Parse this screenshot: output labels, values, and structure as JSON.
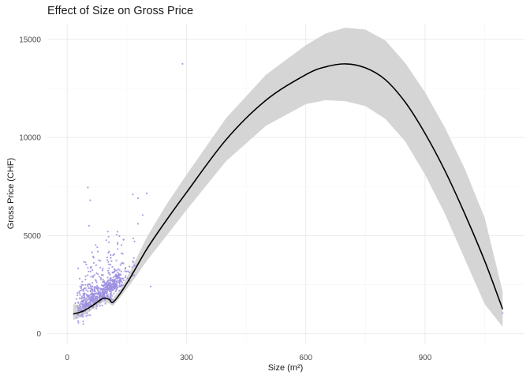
{
  "chart_data": {
    "type": "scatter",
    "title": "Effect of Size on Gross Price",
    "xlabel": "Size (m²)",
    "ylabel": "Gross Price (CHF)",
    "xlim": [
      -50,
      1150
    ],
    "ylim": [
      -500,
      15800
    ],
    "x_ticks": [
      0,
      300,
      600,
      900
    ],
    "y_ticks": [
      0,
      5000,
      10000,
      15000
    ],
    "grid": true,
    "legend": "none",
    "colors": {
      "points": "#9c8fe0",
      "smooth_line": "#000000",
      "ribbon": "#d3d3d3",
      "grid_major": "#ebebeb",
      "grid_minor": "#f5f5f5"
    },
    "points_description_count": 700,
    "outlier_points": [
      {
        "x": 290,
        "y": 13750
      },
      {
        "x": 52,
        "y": 7450
      },
      {
        "x": 165,
        "y": 7100
      },
      {
        "x": 200,
        "y": 7150
      },
      {
        "x": 178,
        "y": 6900
      },
      {
        "x": 58,
        "y": 6800
      },
      {
        "x": 190,
        "y": 6050
      },
      {
        "x": 178,
        "y": 5600
      },
      {
        "x": 55,
        "y": 5500
      },
      {
        "x": 210,
        "y": 2400
      },
      {
        "x": 1095,
        "y": 1050
      }
    ],
    "smooth": {
      "x": [
        15,
        40,
        65,
        90,
        105,
        115,
        135,
        160,
        200,
        250,
        300,
        400,
        500,
        600,
        650,
        700,
        750,
        800,
        850,
        900,
        950,
        1000,
        1050,
        1095
      ],
      "y": [
        1000,
        1150,
        1450,
        1800,
        1750,
        1600,
        2100,
        2900,
        4300,
        5800,
        7200,
        9900,
        11900,
        13200,
        13600,
        13750,
        13550,
        12950,
        11800,
        10200,
        8300,
        6100,
        3700,
        1250
      ],
      "lower": [
        700,
        900,
        1250,
        1600,
        1550,
        1400,
        1900,
        2550,
        3700,
        5000,
        6300,
        8800,
        10600,
        11700,
        11900,
        11850,
        11600,
        10950,
        9800,
        8100,
        6100,
        3800,
        1500,
        350
      ],
      "upper": [
        1500,
        1450,
        1650,
        2000,
        1950,
        1800,
        2300,
        3250,
        4900,
        6600,
        8100,
        11000,
        13200,
        14700,
        15300,
        15600,
        15500,
        14950,
        13800,
        12300,
        10500,
        8400,
        5900,
        2150
      ]
    }
  }
}
